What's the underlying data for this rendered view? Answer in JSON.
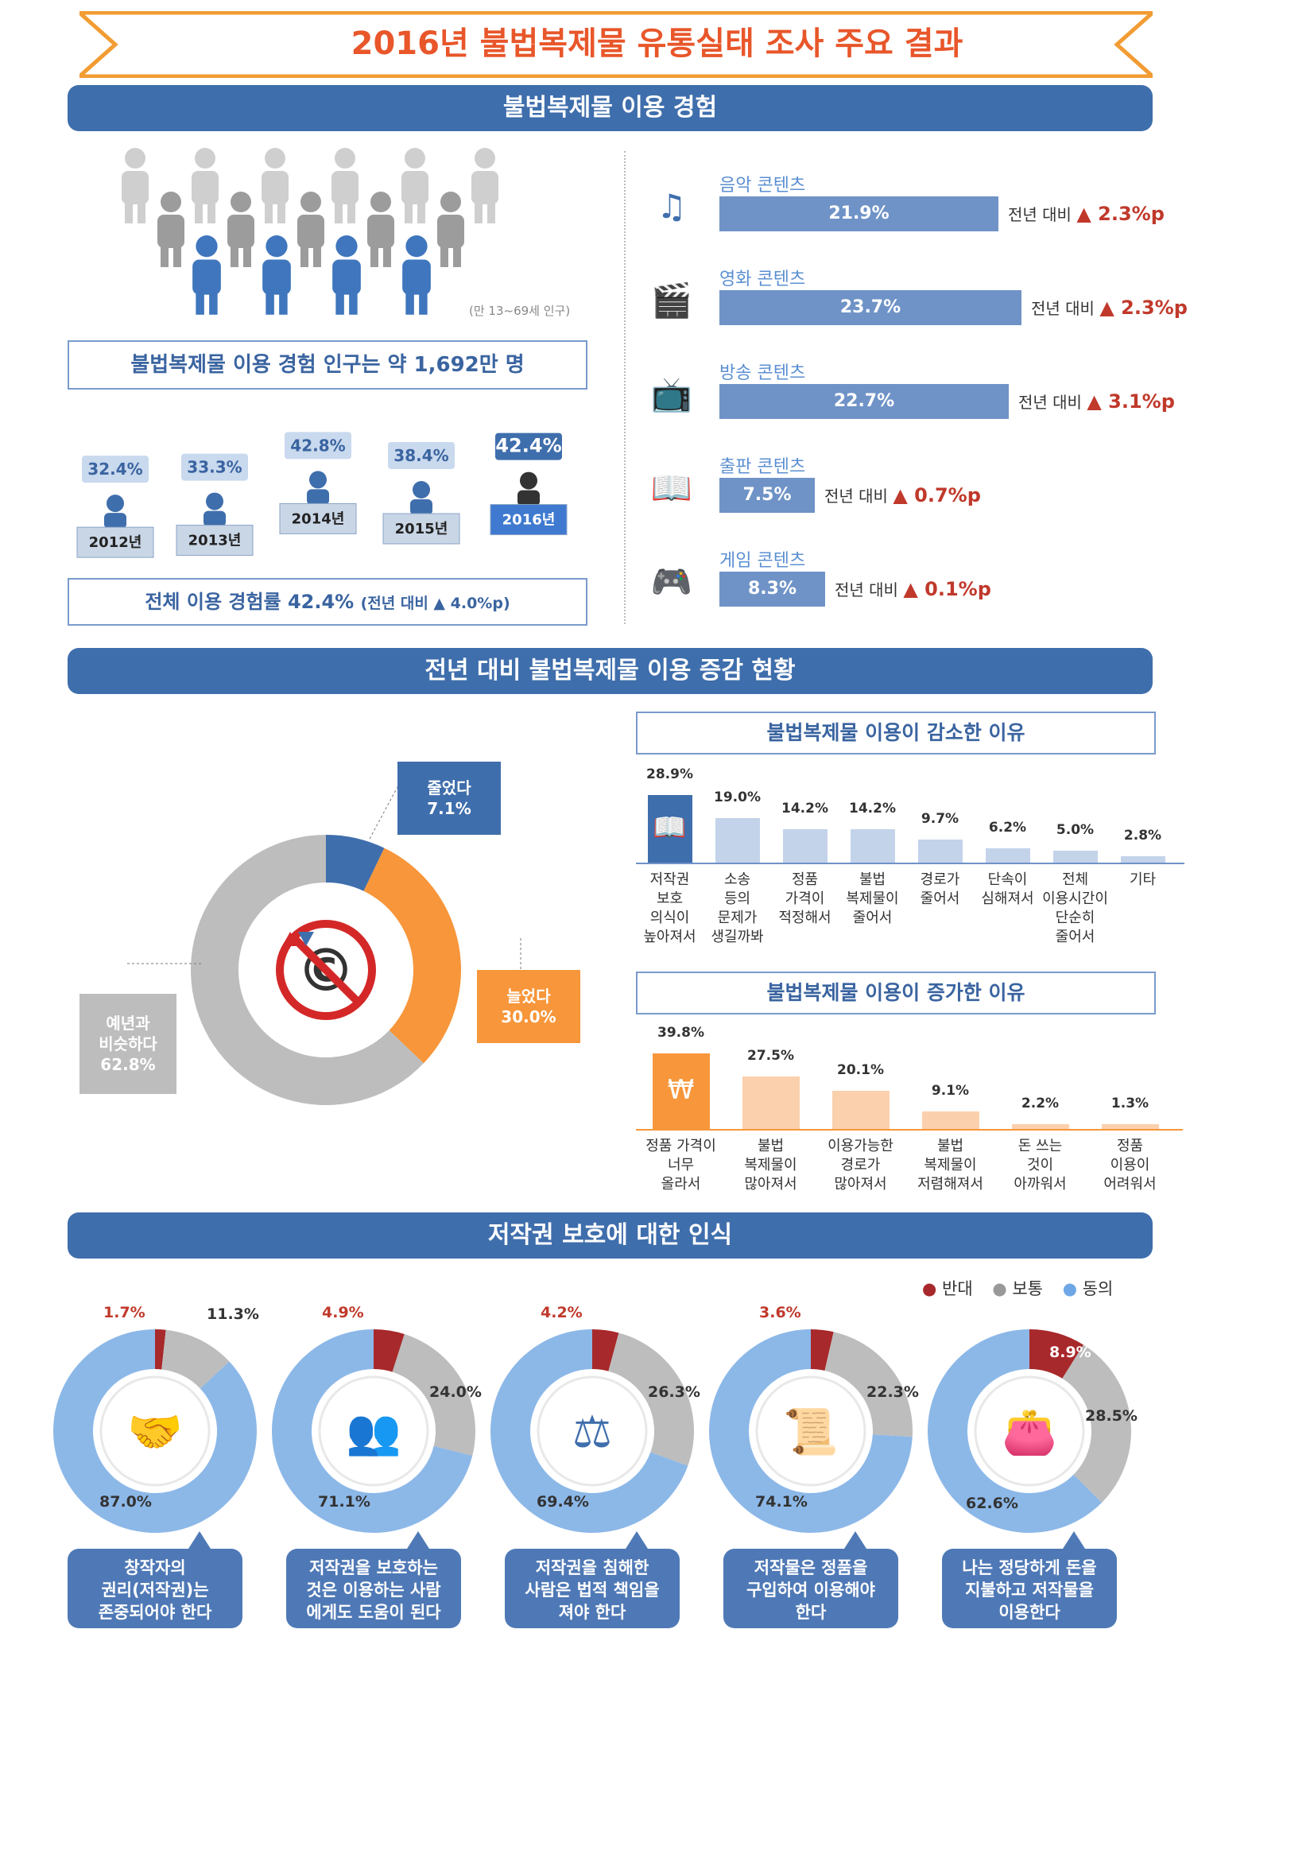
{
  "title": "2016년 불법복제물 유통실태 조사 주요 결과",
  "sections": {
    "s1": "불법복제물 이용 경험",
    "s2": "전년 대비 불법복제물 이용 증감 현황",
    "s3": "저작권 보호에 대한 인식"
  },
  "population": {
    "note": "(만 13~69세 인구)",
    "summary": "불법복제물 이용 경험 인구는 약 1,692만 명",
    "total": "전체 이용 경험률 42.4%",
    "total_change": "(전년 대비 ▲ 4.0%p)"
  },
  "colors": {
    "blue": "#3f6eac",
    "light_blue": "#6f93c7",
    "orange": "#f7963a",
    "gray": "#bdbdbd",
    "red": "#a8292b",
    "agree": "#8cb8e8"
  },
  "chart_data": [
    {
      "type": "bar",
      "name": "yearly-experience-rate",
      "categories": [
        "2012년",
        "2013년",
        "2014년",
        "2015년",
        "2016년"
      ],
      "values": [
        32.4,
        33.3,
        42.8,
        38.4,
        42.4
      ],
      "labels": [
        "32.4%",
        "33.3%",
        "42.8%",
        "38.4%",
        "42.4%"
      ]
    },
    {
      "type": "bar",
      "name": "content-usage",
      "orientation": "horizontal",
      "change_prefix": "전년 대비",
      "items": [
        {
          "label": "음악 콘텐츠",
          "value": 21.9,
          "text": "21.9%",
          "change": "▲ 2.3%p"
        },
        {
          "label": "영화 콘텐츠",
          "value": 23.7,
          "text": "23.7%",
          "change": "▲ 2.3%p"
        },
        {
          "label": "방송 콘텐츠",
          "value": 22.7,
          "text": "22.7%",
          "change": "▲ 3.1%p"
        },
        {
          "label": "출판 콘텐츠",
          "value": 7.5,
          "text": "7.5%",
          "change": "▲ 0.7%p"
        },
        {
          "label": "게임 콘텐츠",
          "value": 8.3,
          "text": "8.3%",
          "change": "▲ 0.1%p"
        }
      ]
    },
    {
      "type": "pie",
      "name": "usage-change",
      "slices": [
        {
          "label": "줄었다",
          "value": 7.1,
          "text": "7.1%",
          "color": "#3f6eac"
        },
        {
          "label": "늘었다",
          "value": 30.0,
          "text": "30.0%",
          "color": "#f7963a"
        },
        {
          "label": "예년과 비슷하다",
          "value": 62.8,
          "text": "62.8%",
          "color": "#bdbdbd"
        }
      ]
    },
    {
      "type": "bar",
      "name": "decrease-reasons",
      "title": "불법복제물 이용이 감소한 이유",
      "items": [
        {
          "label": [
            "저작권",
            "보호",
            "의식이",
            "높아져서"
          ],
          "value": 28.9,
          "text": "28.9%"
        },
        {
          "label": [
            "소송",
            "등의",
            "문제가",
            "생길까봐"
          ],
          "value": 19.0,
          "text": "19.0%"
        },
        {
          "label": [
            "정품",
            "가격이",
            "적정해서"
          ],
          "value": 14.2,
          "text": "14.2%"
        },
        {
          "label": [
            "불법",
            "복제물이",
            "줄어서"
          ],
          "value": 14.2,
          "text": "14.2%"
        },
        {
          "label": [
            "경로가",
            "줄어서"
          ],
          "value": 9.7,
          "text": "9.7%"
        },
        {
          "label": [
            "단속이",
            "심해져서"
          ],
          "value": 6.2,
          "text": "6.2%"
        },
        {
          "label": [
            "전체",
            "이용시간이",
            "단순히",
            "줄어서"
          ],
          "value": 5.0,
          "text": "5.0%"
        },
        {
          "label": [
            "기타"
          ],
          "value": 2.8,
          "text": "2.8%"
        }
      ]
    },
    {
      "type": "bar",
      "name": "increase-reasons",
      "title": "불법복제물 이용이 증가한 이유",
      "items": [
        {
          "label": [
            "정품 가격이",
            "너무",
            "올라서"
          ],
          "value": 39.8,
          "text": "39.8%"
        },
        {
          "label": [
            "불법",
            "복제물이",
            "많아져서"
          ],
          "value": 27.5,
          "text": "27.5%"
        },
        {
          "label": [
            "이용가능한",
            "경로가",
            "많아져서"
          ],
          "value": 20.1,
          "text": "20.1%"
        },
        {
          "label": [
            "불법",
            "복제물이",
            "저렴해져서"
          ],
          "value": 9.1,
          "text": "9.1%"
        },
        {
          "label": [
            "돈 쓰는",
            "것이",
            "아까워서"
          ],
          "value": 2.2,
          "text": "2.2%"
        },
        {
          "label": [
            "정품",
            "이용이",
            "어려워서"
          ],
          "value": 1.3,
          "text": "1.3%"
        }
      ]
    },
    {
      "type": "pie",
      "name": "copyright-perception",
      "legend": [
        "반대",
        "보통",
        "동의"
      ],
      "donuts": [
        {
          "statement": [
            "창작자의",
            "권리(저작권)는",
            "존중되어야 한다"
          ],
          "oppose": 1.7,
          "neutral": 11.3,
          "agree": 87.0,
          "oppose_text": "1.7%",
          "neutral_text": "11.3%",
          "agree_text": "87.0%"
        },
        {
          "statement": [
            "저작권을 보호하는",
            "것은 이용하는 사람",
            "에게도 도움이 된다"
          ],
          "oppose": 4.9,
          "neutral": 24.0,
          "agree": 71.1,
          "oppose_text": "4.9%",
          "neutral_text": "24.0%",
          "agree_text": "71.1%"
        },
        {
          "statement": [
            "저작권을 침해한",
            "사람은 법적 책임을",
            "져야 한다"
          ],
          "oppose": 4.2,
          "neutral": 26.3,
          "agree": 69.4,
          "oppose_text": "4.2%",
          "neutral_text": "26.3%",
          "agree_text": "69.4%"
        },
        {
          "statement": [
            "저작물은 정품을",
            "구입하여 이용해야",
            "한다"
          ],
          "oppose": 3.6,
          "neutral": 22.3,
          "agree": 74.1,
          "oppose_text": "3.6%",
          "neutral_text": "22.3%",
          "agree_text": "74.1%"
        },
        {
          "statement": [
            "나는 정당하게 돈을",
            "지불하고 저작물을",
            "이용한다"
          ],
          "oppose": 8.9,
          "neutral": 28.5,
          "agree": 62.6,
          "oppose_text": "8.9%",
          "neutral_text": "28.5%",
          "agree_text": "62.6%"
        }
      ]
    }
  ]
}
